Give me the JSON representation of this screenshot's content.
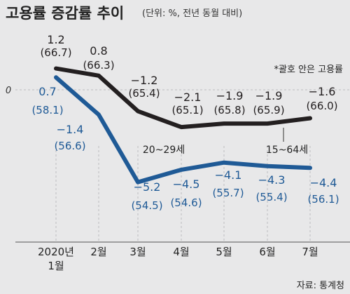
{
  "title": "고용률 증감률 추이",
  "subtitle": "(단위: %, 전년 동월 대비)",
  "note": "*괄호 안은 고용률",
  "source": "자료: 통계청",
  "colors": {
    "line1": "#231f20",
    "line2": "#1f5a96",
    "text1": "#231f20",
    "text2": "#1f5a96",
    "grid": "#bdbdbf"
  },
  "chart_data": {
    "type": "line",
    "categories": [
      "2020년\n1월",
      "2월",
      "3월",
      "4월",
      "5월",
      "6월",
      "7월"
    ],
    "zero_label": "0",
    "series": [
      {
        "name": "15~64세",
        "values": [
          1.2,
          0.8,
          -1.2,
          -2.1,
          -1.9,
          -1.9,
          -1.6
        ],
        "value_labels": [
          "1.2",
          "0.8",
          "−1.2",
          "−2.1",
          "−1.9",
          "−1.9",
          "−1.6"
        ],
        "rate_labels": [
          "(66.7)",
          "(66.3)",
          "(65.4)",
          "(65.1)",
          "(65.8)",
          "(65.9)",
          "(66.0)"
        ]
      },
      {
        "name": "20~29세",
        "values": [
          0.7,
          -1.4,
          -5.2,
          -4.5,
          -4.1,
          -4.3,
          -4.4
        ],
        "value_labels": [
          "0.7",
          "−1.4",
          "−5.2",
          "−4.5",
          "−4.1",
          "−4.3",
          "−4.4"
        ],
        "rate_labels": [
          "(58.1)",
          "(56.6)",
          "(54.5)",
          "(54.6)",
          "(55.7)",
          "(55.4)",
          "(56.1)"
        ]
      }
    ]
  }
}
